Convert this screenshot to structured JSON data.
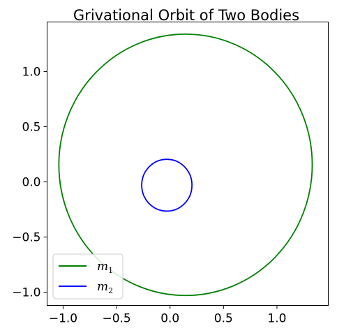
{
  "chart_data": {
    "type": "line",
    "title": "Grivational Orbit of Two Bodies",
    "xlabel": "",
    "ylabel": "",
    "xlim": [
      -1.15,
      1.48
    ],
    "ylim": [
      -1.12,
      1.45
    ],
    "x_ticks": [
      {
        "value": -1.0,
        "label": "−1.0"
      },
      {
        "value": -0.5,
        "label": "−0.5"
      },
      {
        "value": 0.0,
        "label": "0.0"
      },
      {
        "value": 0.5,
        "label": "0.5"
      },
      {
        "value": 1.0,
        "label": "1.0"
      }
    ],
    "y_ticks": [
      {
        "value": -1.0,
        "label": "−1.0"
      },
      {
        "value": -0.5,
        "label": "−0.5"
      },
      {
        "value": 0.0,
        "label": "0.0"
      },
      {
        "value": 0.5,
        "label": "0.5"
      },
      {
        "value": 1.0,
        "label": "1.0"
      }
    ],
    "grid": false,
    "legend_position": "lower-left",
    "series": [
      {
        "name": "m1",
        "legend_main": "m",
        "legend_sub": "1",
        "color": "#008000",
        "shape": "ellipse",
        "center": [
          0.145,
          0.155
        ],
        "radii": [
          1.185,
          1.185
        ]
      },
      {
        "name": "m2",
        "legend_main": "m",
        "legend_sub": "2",
        "color": "#0000ff",
        "shape": "ellipse",
        "center": [
          -0.03,
          -0.03
        ],
        "radii": [
          0.235,
          0.235
        ]
      }
    ]
  }
}
